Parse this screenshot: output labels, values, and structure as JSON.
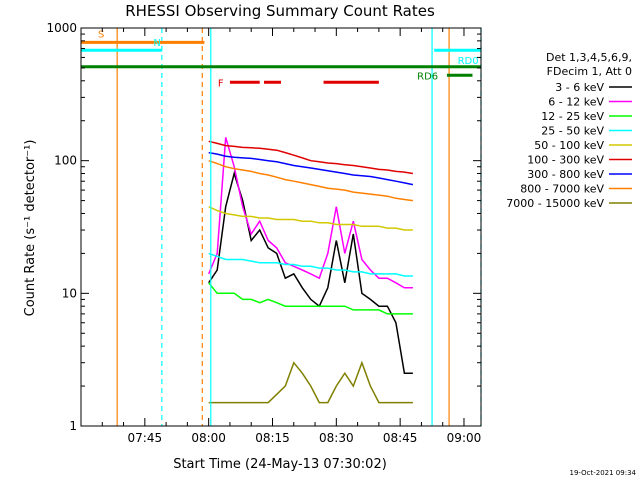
{
  "chart_data": {
    "type": "line",
    "title": "RHESSI Observing Summary Count Rates",
    "xlabel": "Start Time (24-May-13 07:30:02)",
    "ylabel": "Count Rate (s⁻¹ detector⁻¹)",
    "x_units": "minutes after 07:30:02",
    "xlim": [
      0,
      94
    ],
    "ylim": [
      1,
      1000
    ],
    "yscale": "log",
    "x_ticks": [
      {
        "x": 15,
        "label": "07:45"
      },
      {
        "x": 30,
        "label": "08:00"
      },
      {
        "x": 45,
        "label": "08:15"
      },
      {
        "x": 60,
        "label": "08:30"
      },
      {
        "x": 75,
        "label": "08:45"
      },
      {
        "x": 90,
        "label": "09:00"
      }
    ],
    "y_ticks": [
      {
        "y": 1,
        "label": "1"
      },
      {
        "y": 10,
        "label": "10"
      },
      {
        "y": 100,
        "label": "100"
      },
      {
        "y": 1000,
        "label": "1000"
      }
    ],
    "legend_header": [
      "Det 1,3,4,5,6,9,",
      "FDecim 1, Att 0"
    ],
    "legend_position": "right",
    "series": [
      {
        "name": "3 - 6 keV",
        "color": "#000000",
        "x": [
          30,
          32,
          34,
          36,
          38,
          40,
          42,
          44,
          46,
          48,
          50,
          52,
          54,
          56,
          58,
          60,
          62,
          64,
          66,
          68,
          70,
          72,
          74,
          76,
          78
        ],
        "y": [
          12,
          15,
          45,
          80,
          50,
          25,
          30,
          22,
          20,
          13,
          14,
          11,
          9,
          8,
          11,
          25,
          12,
          28,
          10,
          9,
          8,
          8,
          6,
          2.5,
          2.5
        ]
      },
      {
        "name": "6 - 12 keV",
        "color": "#ff00ff",
        "x": [
          30,
          32,
          34,
          36,
          38,
          40,
          42,
          44,
          46,
          48,
          50,
          52,
          54,
          56,
          58,
          60,
          62,
          64,
          66,
          68,
          70,
          72,
          74,
          76,
          78
        ],
        "y": [
          14,
          20,
          150,
          90,
          45,
          28,
          35,
          25,
          22,
          17,
          16,
          15,
          14,
          13,
          20,
          45,
          20,
          35,
          18,
          15,
          13,
          13,
          12,
          11,
          11
        ]
      },
      {
        "name": "12 - 25 keV",
        "color": "#00ff00",
        "x": [
          30,
          32,
          34,
          36,
          38,
          40,
          42,
          44,
          46,
          48,
          50,
          52,
          54,
          56,
          58,
          60,
          62,
          64,
          66,
          68,
          70,
          72,
          74,
          76,
          78
        ],
        "y": [
          12,
          10,
          10,
          10,
          9,
          9,
          8.5,
          9,
          8.5,
          8,
          8,
          8,
          8,
          8,
          8,
          8,
          8,
          7.5,
          7.5,
          7.5,
          7.5,
          7,
          7,
          7,
          7
        ]
      },
      {
        "name": "25 - 50 keV",
        "color": "#00ffff",
        "x": [
          30,
          32,
          34,
          36,
          38,
          40,
          42,
          44,
          46,
          48,
          50,
          52,
          54,
          56,
          58,
          60,
          62,
          64,
          66,
          68,
          70,
          72,
          74,
          76,
          78
        ],
        "y": [
          20,
          19,
          18,
          18,
          18,
          17.5,
          17,
          17,
          17,
          16.5,
          16.5,
          16,
          16,
          15.5,
          15.5,
          15,
          15,
          14.5,
          14.5,
          14,
          14,
          14,
          14,
          13.5,
          13.5
        ]
      },
      {
        "name": "50 - 100 keV",
        "color": "#d2c800",
        "x": [
          30,
          32,
          34,
          36,
          38,
          40,
          42,
          44,
          46,
          48,
          50,
          52,
          54,
          56,
          58,
          60,
          62,
          64,
          66,
          68,
          70,
          72,
          74,
          76,
          78
        ],
        "y": [
          45,
          42,
          40,
          39,
          38,
          38,
          37,
          37,
          36,
          36,
          36,
          35,
          35,
          34,
          34,
          33,
          33,
          33,
          32,
          32,
          32,
          31,
          31,
          30,
          30
        ]
      },
      {
        "name": "100 - 300 keV",
        "color": "#e00000",
        "x": [
          30,
          32,
          34,
          36,
          38,
          40,
          42,
          44,
          46,
          48,
          50,
          52,
          54,
          56,
          58,
          60,
          62,
          64,
          66,
          68,
          70,
          72,
          74,
          76,
          78
        ],
        "y": [
          140,
          135,
          130,
          128,
          126,
          125,
          124,
          122,
          120,
          115,
          110,
          105,
          100,
          98,
          96,
          95,
          93,
          92,
          90,
          88,
          86,
          85,
          83,
          82,
          80
        ]
      },
      {
        "name": "300 - 800 keV",
        "color": "#0000ff",
        "x": [
          30,
          32,
          34,
          36,
          38,
          40,
          42,
          44,
          46,
          48,
          50,
          52,
          54,
          56,
          58,
          60,
          62,
          64,
          66,
          68,
          70,
          72,
          74,
          76,
          78
        ],
        "y": [
          115,
          112,
          108,
          106,
          105,
          104,
          102,
          100,
          98,
          95,
          92,
          90,
          88,
          86,
          84,
          82,
          80,
          78,
          77,
          76,
          74,
          72,
          70,
          68,
          66
        ]
      },
      {
        "name": "800 - 7000 keV",
        "color": "#ff8000",
        "x": [
          30,
          32,
          34,
          36,
          38,
          40,
          42,
          44,
          46,
          48,
          50,
          52,
          54,
          56,
          58,
          60,
          62,
          64,
          66,
          68,
          70,
          72,
          74,
          76,
          78
        ],
        "y": [
          100,
          95,
          90,
          87,
          85,
          83,
          80,
          78,
          75,
          72,
          70,
          68,
          66,
          64,
          62,
          61,
          60,
          58,
          57,
          56,
          55,
          54,
          52,
          51,
          50
        ]
      },
      {
        "name": "7000 - 15000 keV",
        "color": "#808000",
        "x": [
          30,
          33,
          36,
          40,
          44,
          48,
          50,
          52,
          54,
          56,
          58,
          60,
          62,
          64,
          66,
          68,
          70,
          72,
          74,
          76,
          78
        ],
        "y": [
          1.5,
          1.5,
          1.5,
          1.5,
          1.5,
          2,
          3,
          2.5,
          2,
          1.5,
          1.5,
          2,
          2.5,
          2,
          3,
          2,
          1.5,
          1.5,
          1.5,
          1.5,
          1.5
        ]
      }
    ],
    "state_bars": [
      {
        "label": "S",
        "color": "#ff8000",
        "x_start": 0,
        "x_end": 29,
        "y": 780
      },
      {
        "label": "N",
        "color": "#00ffff",
        "x_start": 0,
        "x_end": 19,
        "y": 680
      },
      {
        "label": "RD0",
        "color": "#00ffff",
        "x_start": 83,
        "x_end": 94,
        "y": 680
      },
      {
        "label": "RD6",
        "color": "#008000",
        "x_start": 0,
        "x_end": 94,
        "y": 510
      }
    ],
    "rd6_marker": {
      "x_start": 86,
      "x_end": 92,
      "y": 440
    },
    "flare_segments": {
      "label": "F",
      "color": "#e00000",
      "y": 390,
      "ranges": [
        [
          35,
          42
        ],
        [
          43,
          47
        ],
        [
          57,
          70
        ]
      ]
    },
    "vertical_lines": [
      {
        "x": 8.5,
        "color": "#ff8000",
        "style": "solid"
      },
      {
        "x": 19,
        "color": "#00ffff",
        "style": "dashed"
      },
      {
        "x": 28.5,
        "color": "#ff8000",
        "style": "dashed"
      },
      {
        "x": 30.5,
        "color": "#00ffff",
        "style": "solid"
      },
      {
        "x": 82.5,
        "color": "#00ffff",
        "style": "solid"
      },
      {
        "x": 86.5,
        "color": "#ff8000",
        "style": "solid"
      },
      {
        "x": 94,
        "color": "#00ffff",
        "style": "dashed"
      }
    ]
  },
  "timestamp": "19-Oct-2021 09:34"
}
